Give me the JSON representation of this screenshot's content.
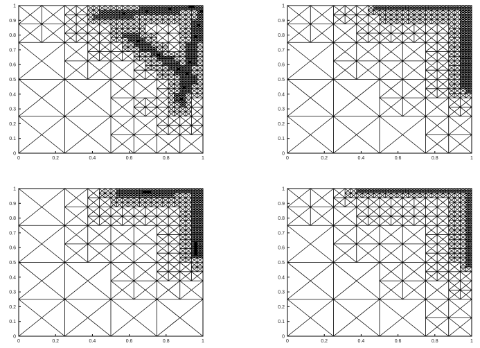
{
  "chart_data": [
    {
      "type": "mesh",
      "xlim": [
        0,
        1
      ],
      "ylim": [
        0,
        1
      ],
      "xticks": [
        0,
        0.2,
        0.4,
        0.6,
        0.8,
        1
      ],
      "yticks": [
        0,
        0.1,
        0.2,
        0.3,
        0.4,
        0.5,
        0.6,
        0.7,
        0.8,
        0.9,
        1
      ]
    },
    {
      "type": "mesh",
      "xlim": [
        0,
        1
      ],
      "ylim": [
        0,
        1
      ],
      "xticks": [
        0,
        0.2,
        0.4,
        0.6,
        0.8,
        1
      ],
      "yticks": [
        0,
        0.1,
        0.2,
        0.3,
        0.4,
        0.5,
        0.6,
        0.7,
        0.8,
        0.9,
        1
      ]
    },
    {
      "type": "mesh",
      "xlim": [
        0,
        1
      ],
      "ylim": [
        0,
        1
      ],
      "xticks": [
        0,
        0.2,
        0.4,
        0.6,
        0.8,
        1
      ],
      "yticks": [
        0,
        0.1,
        0.2,
        0.3,
        0.4,
        0.5,
        0.6,
        0.7,
        0.8,
        0.9,
        1
      ]
    },
    {
      "type": "mesh",
      "xlim": [
        0,
        1
      ],
      "ylim": [
        0,
        1
      ],
      "xticks": [
        0,
        0.2,
        0.4,
        0.6,
        0.8,
        1
      ],
      "yticks": [
        0,
        0.1,
        0.2,
        0.3,
        0.4,
        0.5,
        0.6,
        0.7,
        0.8,
        0.9,
        1
      ]
    }
  ]
}
